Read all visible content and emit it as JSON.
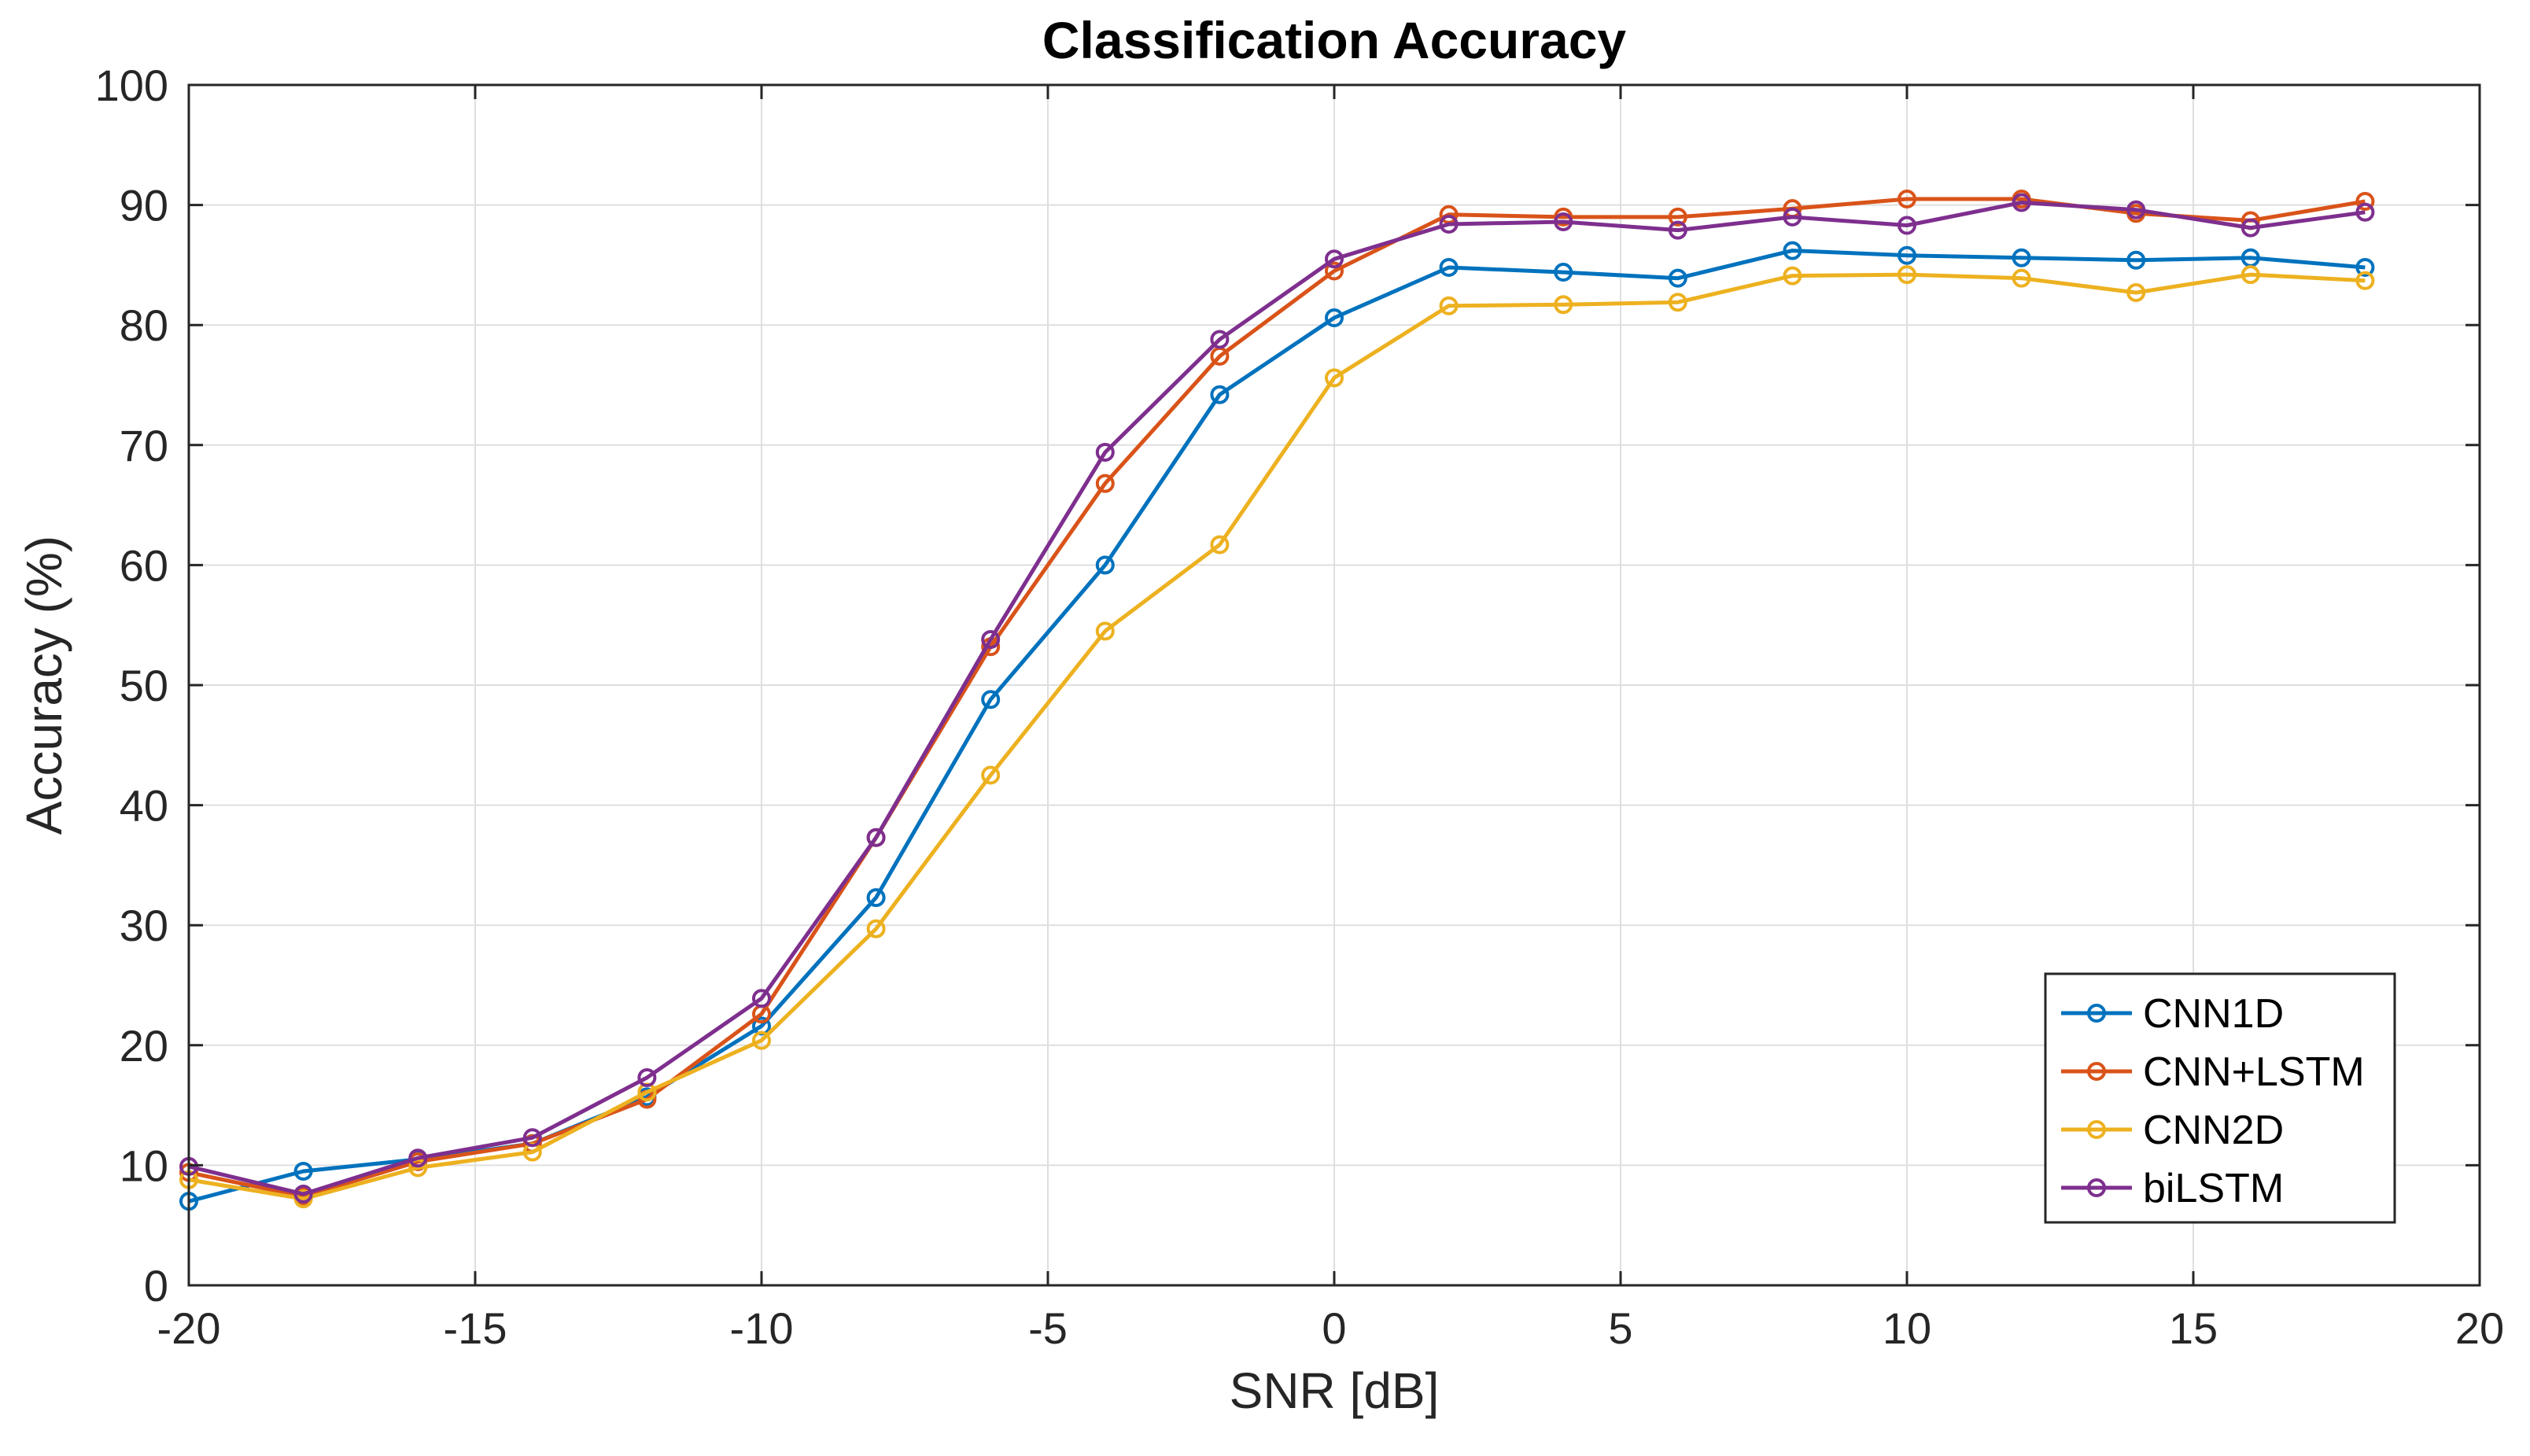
{
  "chart_data": {
    "type": "line",
    "title": "Classification Accuracy",
    "xlabel": "SNR [dB]",
    "ylabel": "Accuracy (%)",
    "xlim": [
      -20,
      20
    ],
    "ylim": [
      0,
      100
    ],
    "xticks": [
      -20,
      -15,
      -10,
      -5,
      0,
      5,
      10,
      15,
      20
    ],
    "yticks": [
      0,
      10,
      20,
      30,
      40,
      50,
      60,
      70,
      80,
      90,
      100
    ],
    "grid": true,
    "legend_position": "bottom-right",
    "x": [
      -20,
      -18,
      -16,
      -14,
      -12,
      -10,
      -8,
      -6,
      -4,
      -2,
      0,
      2,
      4,
      6,
      8,
      10,
      12,
      14,
      16,
      18
    ],
    "series": [
      {
        "name": "CNN1D",
        "color": "#0072BD",
        "marker": "circle",
        "values": [
          7.0,
          9.5,
          10.5,
          11.8,
          15.7,
          21.6,
          32.3,
          48.8,
          60.0,
          74.2,
          80.6,
          84.8,
          84.4,
          83.9,
          86.2,
          85.8,
          85.6,
          85.4,
          85.6,
          84.8
        ]
      },
      {
        "name": "CNN+LSTM",
        "color": "#D95319",
        "marker": "circle",
        "values": [
          9.4,
          7.4,
          10.3,
          11.8,
          15.5,
          22.6,
          37.3,
          53.2,
          66.8,
          77.4,
          84.5,
          89.2,
          89.0,
          89.0,
          89.7,
          90.5,
          90.5,
          89.3,
          88.7,
          90.3
        ]
      },
      {
        "name": "CNN2D",
        "color": "#EDB120",
        "marker": "circle",
        "values": [
          8.8,
          7.2,
          9.8,
          11.1,
          16.1,
          20.4,
          29.7,
          42.5,
          54.5,
          61.7,
          75.6,
          81.6,
          81.7,
          81.9,
          84.1,
          84.2,
          83.9,
          82.7,
          84.2,
          83.7
        ]
      },
      {
        "name": "biLSTM",
        "color": "#7E2F8E",
        "marker": "circle",
        "values": [
          9.9,
          7.6,
          10.6,
          12.3,
          17.3,
          23.9,
          37.3,
          53.8,
          69.4,
          78.8,
          85.5,
          88.4,
          88.6,
          87.9,
          89.0,
          88.3,
          90.2,
          89.6,
          88.1,
          89.4
        ]
      }
    ]
  }
}
